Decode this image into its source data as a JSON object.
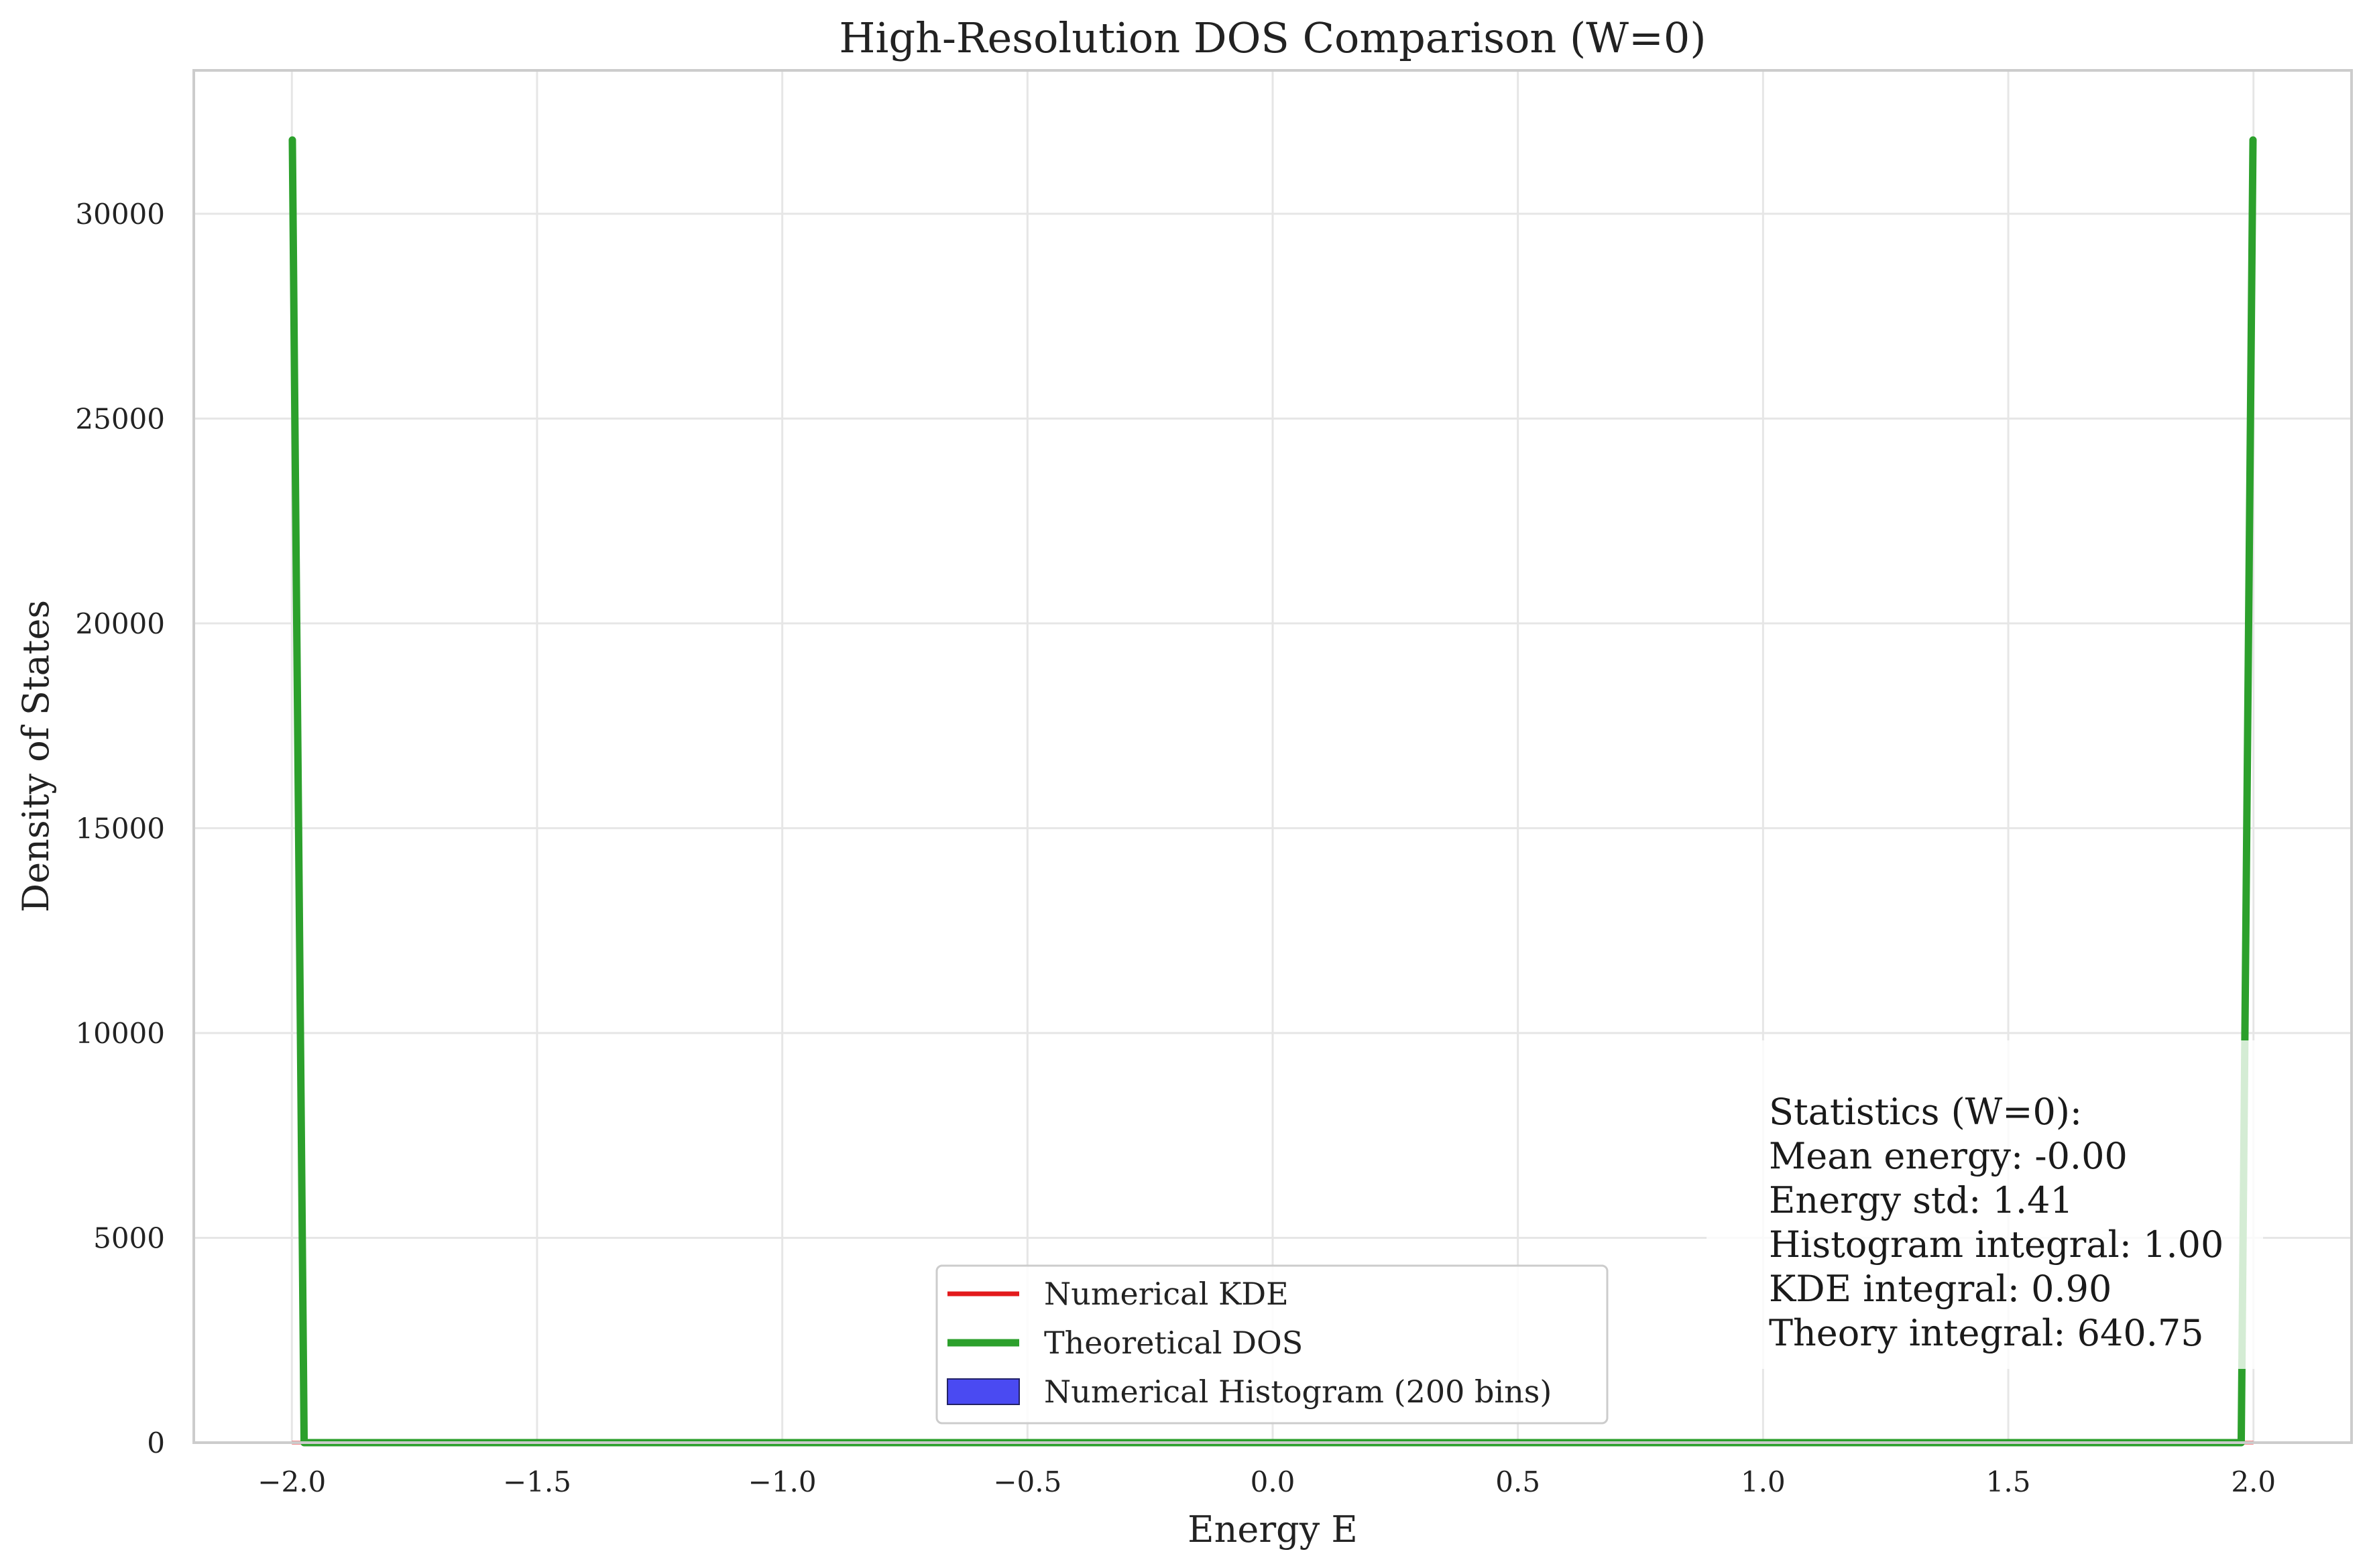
{
  "chart_data": {
    "type": "line",
    "title": "High-Resolution DOS Comparison (W=0)",
    "xlabel": "Energy E",
    "ylabel": "Density of States",
    "xlim": [
      -2.2,
      2.2
    ],
    "ylim": [
      0,
      33500
    ],
    "grid": true,
    "legend_position": "bottom-center",
    "x_ticks": [
      -2.0,
      -1.5,
      -1.0,
      -0.5,
      0.0,
      0.5,
      1.0,
      1.5,
      2.0
    ],
    "x_tick_labels": [
      "−2.0",
      "−1.5",
      "−1.0",
      "−0.5",
      "0.0",
      "0.5",
      "1.0",
      "1.5",
      "2.0"
    ],
    "y_ticks": [
      0,
      5000,
      10000,
      15000,
      20000,
      25000,
      30000
    ],
    "y_tick_labels": [
      "0",
      "5000",
      "10000",
      "15000",
      "20000",
      "25000",
      "30000"
    ],
    "series": [
      {
        "name": "Numerical KDE",
        "color": "#e31a1c",
        "x": [
          -2.0,
          -1.5,
          -1.0,
          -0.5,
          0.0,
          0.5,
          1.0,
          1.5,
          2.0
        ],
        "y": [
          0,
          0,
          0,
          0,
          0,
          0,
          0,
          0,
          0
        ]
      },
      {
        "name": "Theoretical DOS",
        "color": "#2ca02c",
        "x": [
          -1.999,
          -1.975,
          -1.5,
          -1.0,
          -0.5,
          0.0,
          0.5,
          1.0,
          1.5,
          1.975,
          1.999
        ],
        "y": [
          31800,
          0,
          0,
          0,
          0,
          0,
          0,
          0,
          0,
          0,
          31800
        ]
      },
      {
        "name": "Numerical Histogram (200 bins)",
        "color": "#4a4af2",
        "type": "bar",
        "bins": 200,
        "range": [
          -2.0,
          2.0
        ],
        "density_level": 0.25
      }
    ],
    "statistics_box": {
      "position": "bottom-right",
      "lines": [
        "Statistics (W=0):",
        "Mean energy: -0.00",
        "Energy std: 1.41",
        "Histogram integral: 1.00",
        "KDE integral: 0.90",
        "Theory integral: 640.75"
      ]
    }
  }
}
